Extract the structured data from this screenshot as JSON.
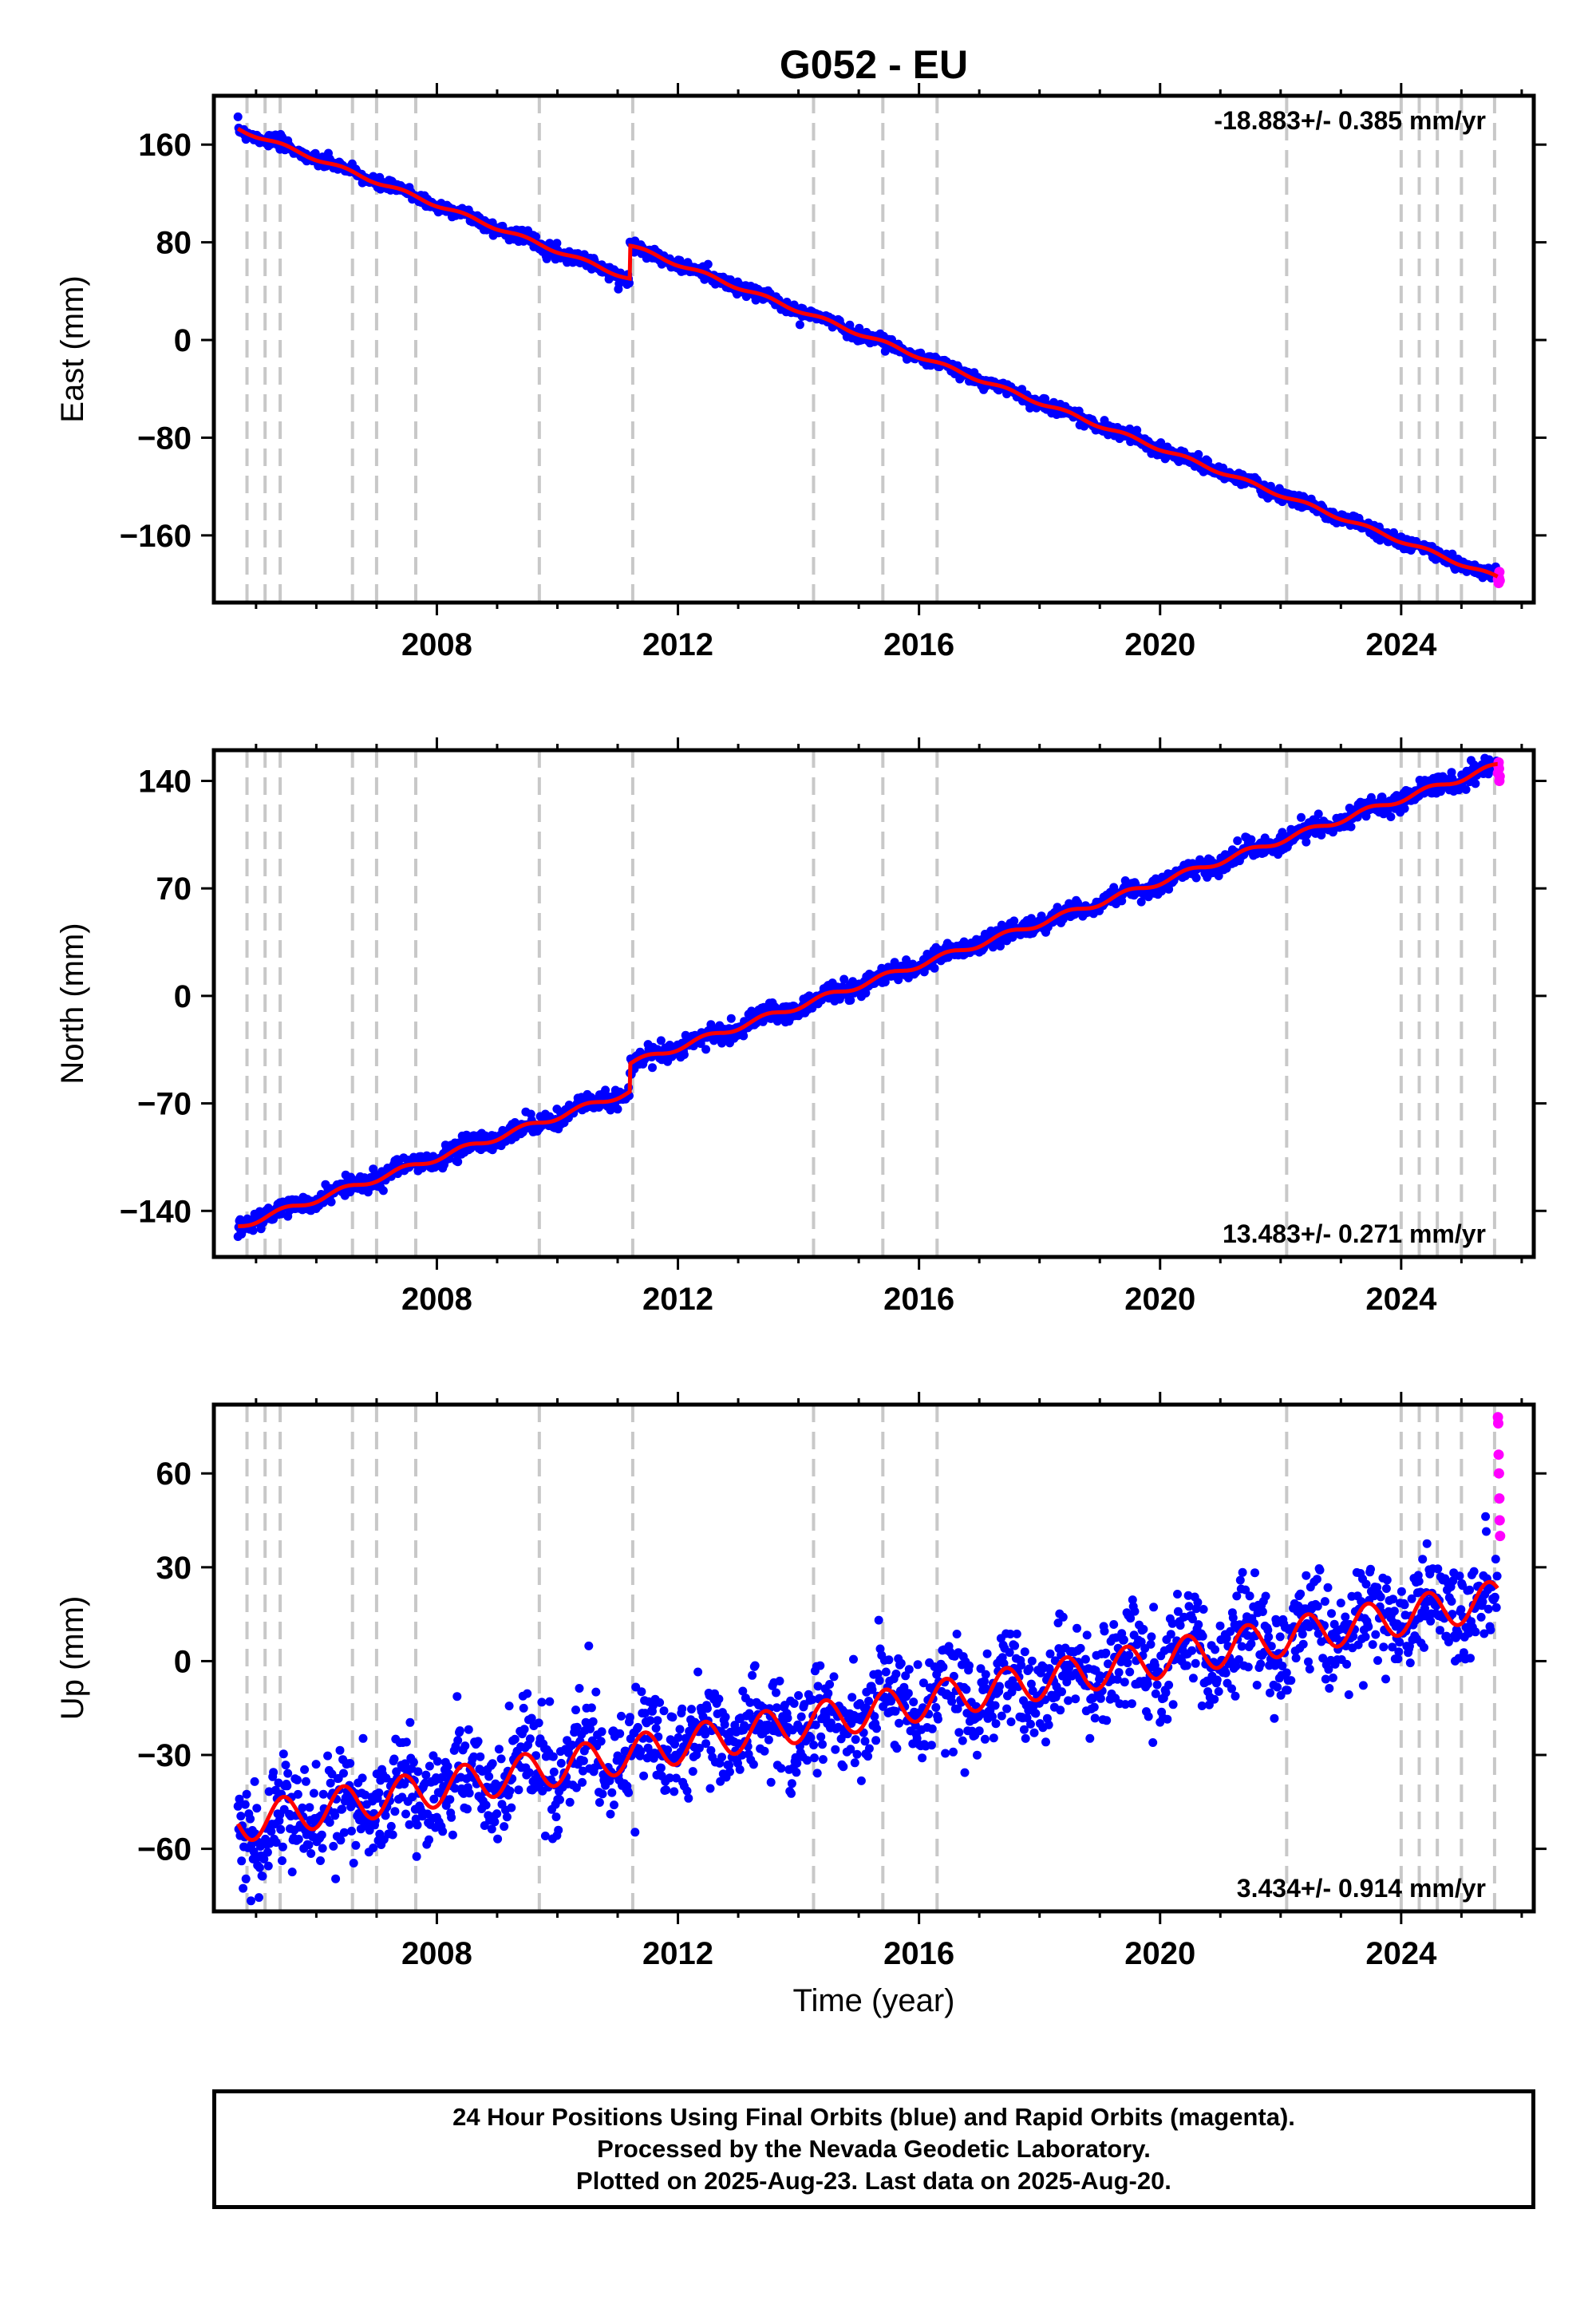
{
  "title": "G052 - EU",
  "colors": {
    "final": "#0000ff",
    "rapid": "#ff00ff",
    "model": "#ff0000",
    "event_lines": "#c8c8c8"
  },
  "chart_data": [
    {
      "type": "scatter",
      "component": "east",
      "ylabel": "East (mm)",
      "xlim": [
        2004.3,
        2026.2
      ],
      "ylim": [
        -215,
        200
      ],
      "yticks": [
        -160,
        -80,
        0,
        80,
        160
      ],
      "xticks": [
        2008,
        2012,
        2016,
        2020,
        2024
      ],
      "tick_labels": [
        "2008",
        "2012",
        "2016",
        "2020",
        "2024"
      ],
      "ytick_labels": [
        "−160",
        "−80",
        "0",
        "80",
        "160"
      ],
      "rate_label": "-18.883+/- 0.385 mm/yr",
      "rate_position": "top-right",
      "model": {
        "start": 2004.7,
        "end": 2025.6,
        "start_value": 173,
        "rate": -18.883,
        "seasonal_amp": 1.5,
        "offsets": [
          {
            "epoch": 2011.2,
            "value": 27
          }
        ]
      },
      "scatter_mm": 2.5,
      "rapid_values": [
        -196,
        -193,
        -199,
        -195,
        -190,
        -197
      ],
      "series": [
        {
          "name": "Final Orbits",
          "color": "#0000ff"
        },
        {
          "name": "Rapid Orbits",
          "color": "#ff00ff"
        }
      ]
    },
    {
      "type": "scatter",
      "component": "north",
      "ylabel": "North (mm)",
      "xlim": [
        2004.3,
        2026.2
      ],
      "ylim": [
        -170,
        160
      ],
      "yticks": [
        -140,
        -70,
        0,
        70,
        140
      ],
      "xticks": [
        2008,
        2012,
        2016,
        2020,
        2024
      ],
      "tick_labels": [
        "2008",
        "2012",
        "2016",
        "2020",
        "2024"
      ],
      "ytick_labels": [
        "−140",
        "−70",
        "0",
        "70",
        "140"
      ],
      "rate_label": "13.483+/- 0.271 mm/yr",
      "rate_position": "bottom-right",
      "model": {
        "start": 2004.7,
        "end": 2025.6,
        "start_value": -150,
        "rate": 13.483,
        "seasonal_amp": 2,
        "offsets": [
          {
            "epoch": 2011.2,
            "value": 18
          }
        ]
      },
      "scatter_mm": 3,
      "rapid_values": [
        145,
        150,
        152,
        148,
        140,
        143
      ],
      "series": [
        {
          "name": "Final Orbits",
          "color": "#0000ff"
        },
        {
          "name": "Rapid Orbits",
          "color": "#ff00ff"
        }
      ]
    },
    {
      "type": "scatter",
      "component": "up",
      "ylabel": "Up (mm)",
      "xlabel": "Time (year)",
      "xlim": [
        2004.3,
        2026.2
      ],
      "ylim": [
        -80,
        82
      ],
      "yticks": [
        -60,
        -30,
        0,
        30,
        60
      ],
      "xticks": [
        2008,
        2012,
        2016,
        2020,
        2024
      ],
      "tick_labels": [
        "2008",
        "2012",
        "2016",
        "2020",
        "2024"
      ],
      "ytick_labels": [
        "−60",
        "−30",
        "0",
        "30",
        "60"
      ],
      "rate_label": "3.434+/- 0.914 mm/yr",
      "rate_position": "bottom-right",
      "model": {
        "start": 2004.7,
        "end": 2025.6,
        "start_value": -52,
        "rate": 3.434,
        "seasonal_amp": 6,
        "offsets": []
      },
      "scatter_mm": 8,
      "rapid_values": [
        78,
        76,
        66,
        60,
        52,
        45,
        40
      ],
      "series": [
        {
          "name": "Final Orbits",
          "color": "#0000ff"
        },
        {
          "name": "Rapid Orbits",
          "color": "#ff00ff"
        }
      ]
    }
  ],
  "event_epochs": [
    2004.85,
    2005.15,
    2005.4,
    2006.6,
    2007.0,
    2007.65,
    2009.7,
    2011.25,
    2014.25,
    2015.4,
    2016.3,
    2022.1,
    2024.0,
    2024.3,
    2024.6,
    2025.0,
    2025.55
  ],
  "footer": {
    "line1": "24 Hour Positions Using Final Orbits (blue) and Rapid Orbits (magenta).",
    "line2": "Processed by the Nevada Geodetic Laboratory.",
    "line3": "Plotted on 2025-Aug-23. Last data on 2025-Aug-20."
  }
}
